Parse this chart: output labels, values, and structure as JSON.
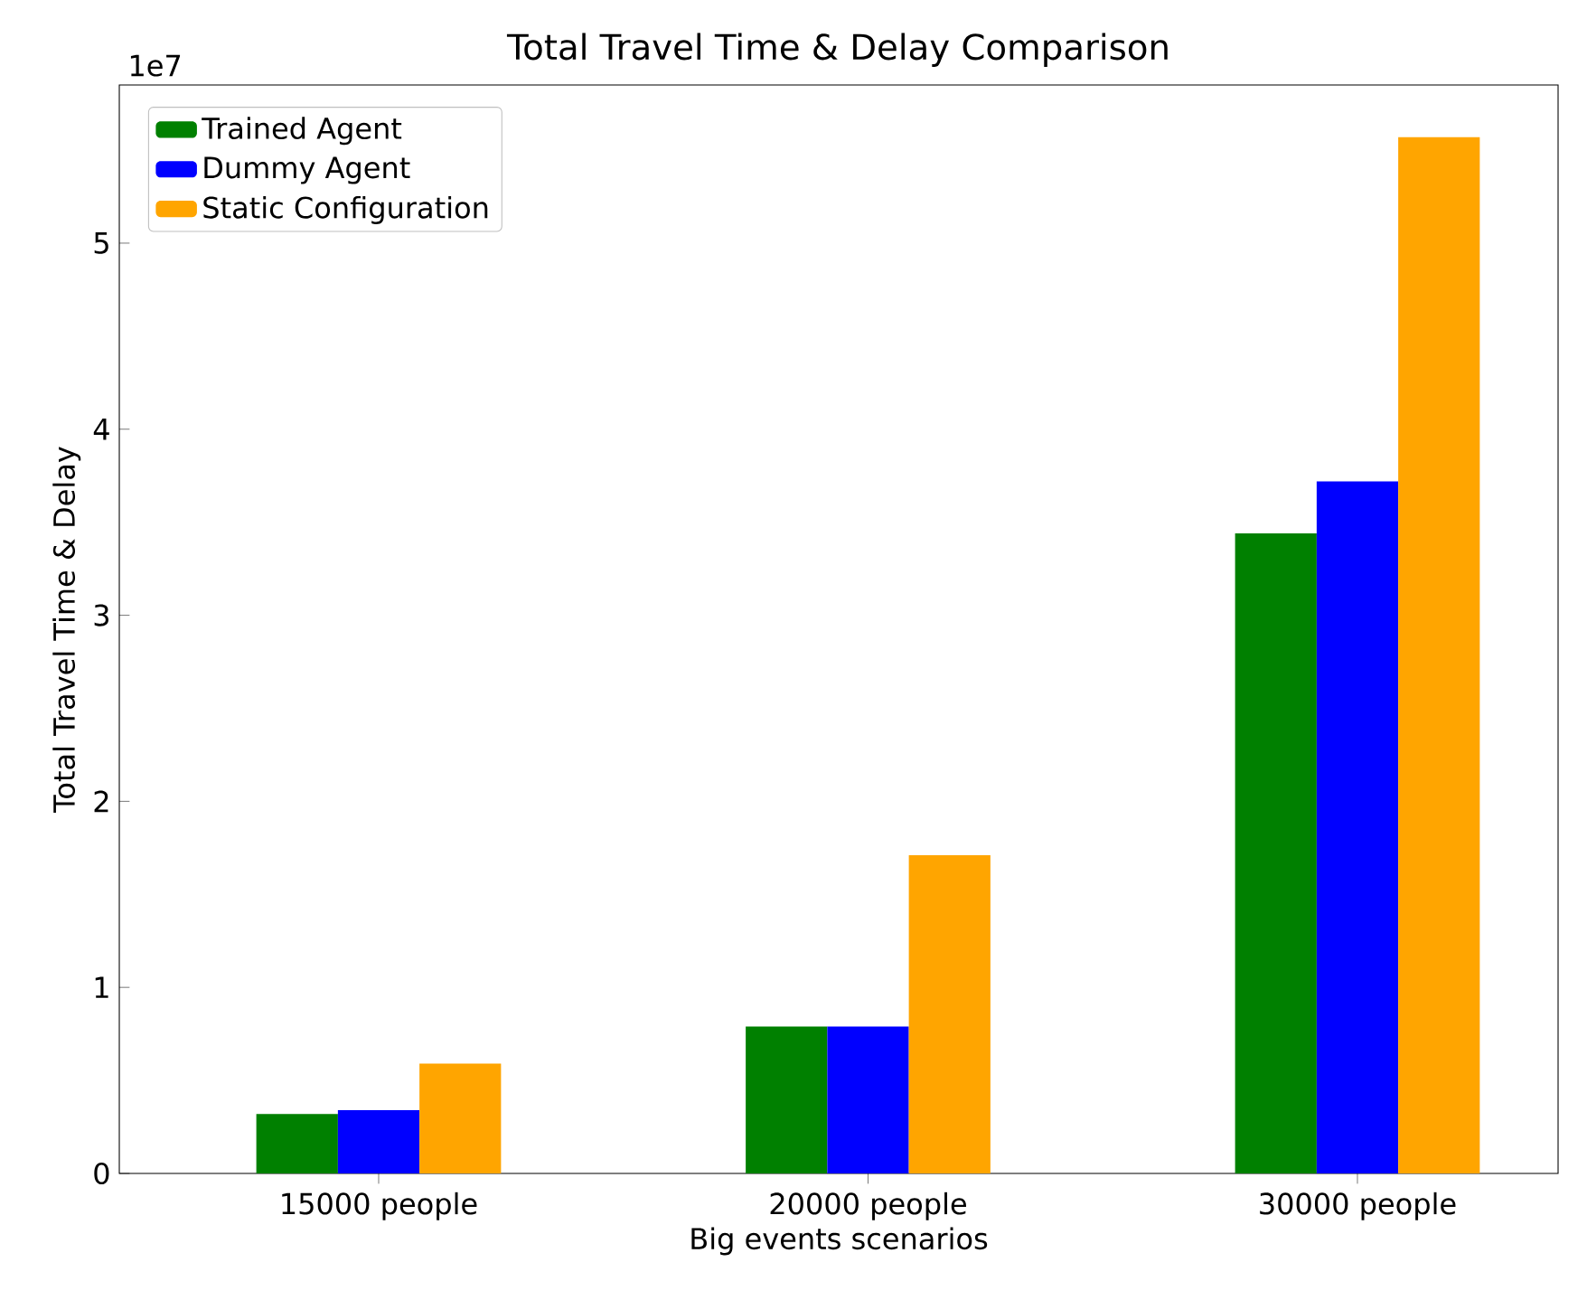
{
  "chart_data": {
    "type": "bar",
    "title": "Total Travel Time & Delay Comparison",
    "xlabel": "Big events scenarios",
    "ylabel": "Total Travel Time & Delay",
    "categories": [
      "15000 people",
      "20000 people",
      "30000 people"
    ],
    "series": [
      {
        "name": "Trained Agent",
        "color": "#008000",
        "values": [
          0.32,
          0.79,
          3.44
        ]
      },
      {
        "name": "Dummy Agent",
        "color": "#0000ff",
        "values": [
          0.34,
          0.79,
          3.72
        ]
      },
      {
        "name": "Static Configuration",
        "color": "#ffa500",
        "values": [
          0.59,
          1.71,
          5.57
        ]
      }
    ],
    "ylim": [
      0,
      5.85
    ],
    "yticks": [
      0,
      1,
      2,
      3,
      4,
      5
    ],
    "annotations": [
      "1e7"
    ],
    "legend": "top left"
  }
}
